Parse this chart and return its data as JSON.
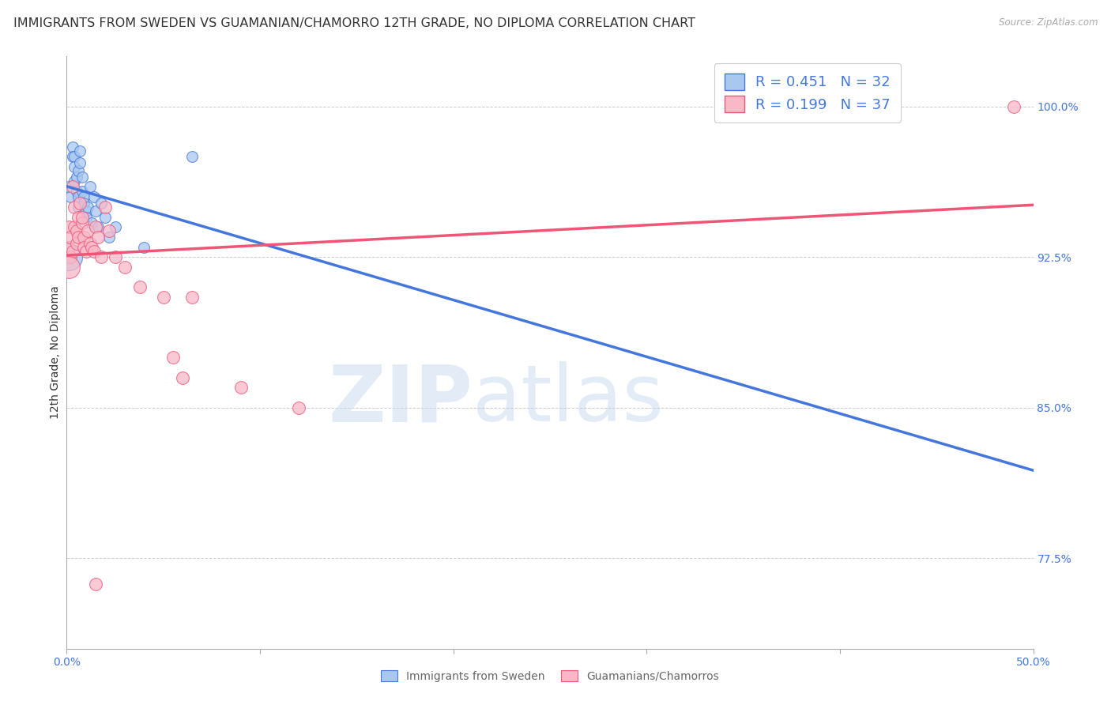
{
  "title": "IMMIGRANTS FROM SWEDEN VS GUAMANIAN/CHAMORRO 12TH GRADE, NO DIPLOMA CORRELATION CHART",
  "source": "Source: ZipAtlas.com",
  "ylabel": "12th Grade, No Diploma",
  "xlim": [
    0.0,
    0.5
  ],
  "ylim": [
    0.73,
    1.025
  ],
  "yticks_right": [
    1.0,
    0.925,
    0.85,
    0.775
  ],
  "yticklabels_right": [
    "100.0%",
    "92.5%",
    "85.0%",
    "77.5%"
  ],
  "blue_label": "Immigrants from Sweden",
  "pink_label": "Guamanians/Chamorros",
  "blue_R": 0.451,
  "blue_N": 32,
  "pink_R": 0.199,
  "pink_N": 37,
  "blue_color": "#A8C8F0",
  "pink_color": "#F8B8C8",
  "trend_blue": "#4477DD",
  "trend_pink": "#EE5577",
  "blue_scatter_x": [
    0.001,
    0.002,
    0.003,
    0.003,
    0.004,
    0.004,
    0.004,
    0.005,
    0.005,
    0.006,
    0.006,
    0.006,
    0.007,
    0.007,
    0.008,
    0.008,
    0.009,
    0.009,
    0.01,
    0.01,
    0.011,
    0.012,
    0.013,
    0.014,
    0.015,
    0.016,
    0.018,
    0.02,
    0.022,
    0.025,
    0.04,
    0.065
  ],
  "blue_scatter_y": [
    0.96,
    0.955,
    0.98,
    0.975,
    0.975,
    0.97,
    0.963,
    0.958,
    0.965,
    0.968,
    0.955,
    0.95,
    0.972,
    0.978,
    0.965,
    0.958,
    0.955,
    0.952,
    0.948,
    0.945,
    0.95,
    0.96,
    0.942,
    0.955,
    0.948,
    0.94,
    0.952,
    0.945,
    0.935,
    0.94,
    0.93,
    0.975
  ],
  "pink_scatter_x": [
    0.001,
    0.001,
    0.002,
    0.002,
    0.003,
    0.003,
    0.004,
    0.004,
    0.005,
    0.005,
    0.006,
    0.006,
    0.007,
    0.008,
    0.008,
    0.009,
    0.009,
    0.01,
    0.011,
    0.012,
    0.013,
    0.014,
    0.015,
    0.016,
    0.018,
    0.02,
    0.022,
    0.025,
    0.03,
    0.038,
    0.05,
    0.055,
    0.06,
    0.065,
    0.09,
    0.12,
    0.49
  ],
  "pink_scatter_y": [
    0.93,
    0.94,
    0.935,
    0.925,
    0.96,
    0.928,
    0.95,
    0.94,
    0.938,
    0.932,
    0.945,
    0.935,
    0.952,
    0.942,
    0.945,
    0.935,
    0.93,
    0.928,
    0.938,
    0.932,
    0.93,
    0.928,
    0.94,
    0.935,
    0.925,
    0.95,
    0.938,
    0.925,
    0.92,
    0.91,
    0.905,
    0.875,
    0.865,
    0.905,
    0.86,
    0.85,
    1.0
  ],
  "blue_size_x": [
    0.0
  ],
  "blue_size_y": [
    0.93
  ],
  "blue_big_size": 600,
  "blue_marker_size": 100,
  "pink_marker_size": 130,
  "pink_big_x": [
    0.001
  ],
  "pink_big_y": [
    0.76
  ],
  "pink_big_size": 400,
  "background_color": "#FFFFFF",
  "grid_color": "#CCCCCC",
  "watermark_zip": "ZIP",
  "watermark_atlas": "atlas",
  "title_fontsize": 11.5,
  "axis_label_fontsize": 10,
  "tick_fontsize": 10,
  "legend_fontsize": 13
}
